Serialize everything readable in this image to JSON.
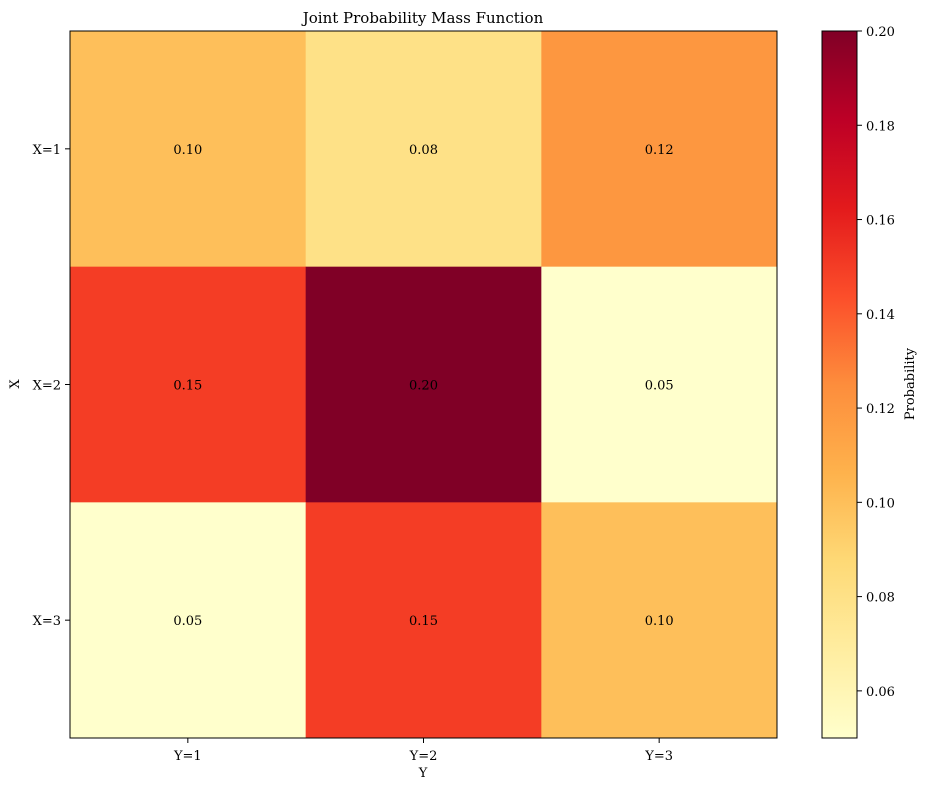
{
  "chart_data": {
    "type": "heatmap",
    "title": "Joint Probability Mass Function",
    "xlabel": "Y",
    "ylabel": "X",
    "x_categories": [
      "Y=1",
      "Y=2",
      "Y=3"
    ],
    "y_categories": [
      "X=1",
      "X=2",
      "X=3"
    ],
    "values": [
      [
        0.1,
        0.08,
        0.12
      ],
      [
        0.15,
        0.2,
        0.05
      ],
      [
        0.05,
        0.15,
        0.1
      ]
    ],
    "cell_labels": [
      [
        "0.10",
        "0.08",
        "0.12"
      ],
      [
        "0.15",
        "0.20",
        "0.05"
      ],
      [
        "0.05",
        "0.15",
        "0.10"
      ]
    ],
    "colormap": "YlOrRd",
    "colorbar": {
      "label": "Probability",
      "range": [
        0.05,
        0.2
      ],
      "ticks": [
        0.06,
        0.08,
        0.1,
        0.12,
        0.14,
        0.16,
        0.18,
        0.2
      ],
      "tick_labels": [
        "0.06",
        "0.08",
        "0.10",
        "0.12",
        "0.14",
        "0.16",
        "0.18",
        "0.20"
      ]
    },
    "grid": false
  }
}
